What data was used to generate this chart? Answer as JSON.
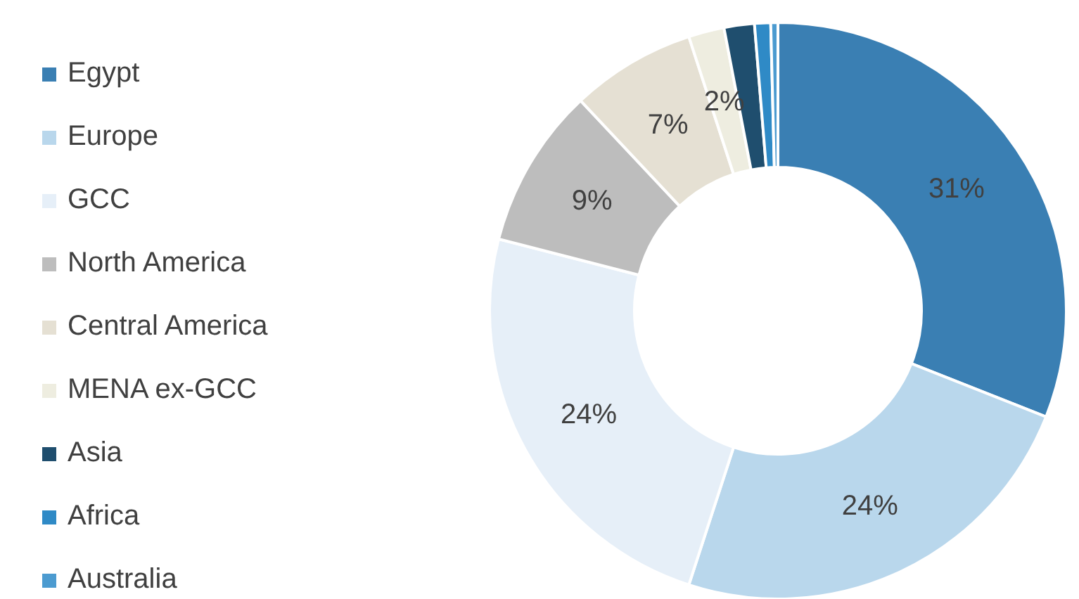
{
  "chart_data": {
    "type": "donut",
    "categories": [
      "Egypt",
      "Europe",
      "GCC",
      "North America",
      "Central America",
      "MENA ex-GCC",
      "Asia",
      "Africa",
      "Australia"
    ],
    "values": [
      31,
      24,
      24,
      9,
      7,
      2,
      1.7,
      0.9,
      0.4
    ],
    "value_labels": [
      "31%",
      "24%",
      "24%",
      "9%",
      "7%",
      "2%",
      null,
      null,
      null
    ],
    "colors": [
      "#3a7fb3",
      "#b9d7ec",
      "#e6eff8",
      "#bdbdbd",
      "#e5e0d3",
      "#eeede0",
      "#1f4e6e",
      "#2f8ac6",
      "#4c9bd0"
    ],
    "legend": "left"
  }
}
